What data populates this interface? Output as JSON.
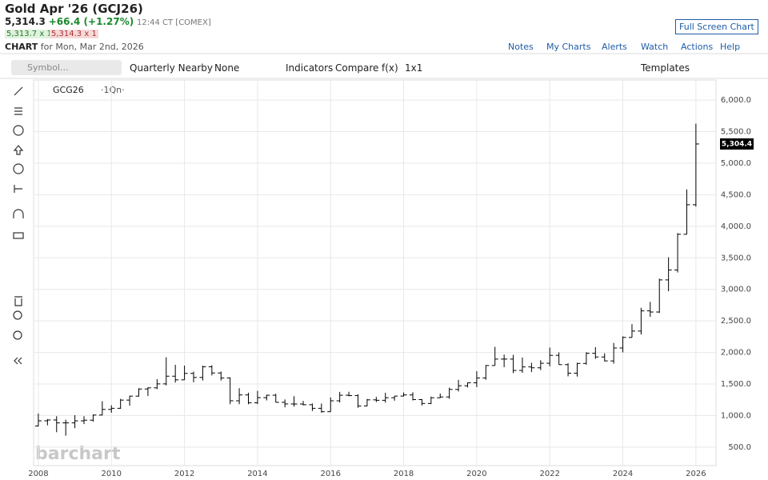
{
  "header": {
    "title": "Gold Apr '26 (GCJ26)",
    "last": "5,314.3",
    "change": "+66.4 (+1.27%)",
    "time": "12:44 CT [COMEX]",
    "bid": "5,313.7 x 1",
    "ask": "5,314.3 x 1",
    "chart_label": "CHART",
    "date": "for Mon, Mar 2nd, 2026",
    "full_screen": "Full Screen Chart"
  },
  "menu": [
    "Notes",
    "My Charts",
    "Alerts",
    "Watch",
    "Actions",
    "Help"
  ],
  "toolbar": {
    "search": "Symbol...",
    "items": [
      "Quarterly Nearby",
      "None",
      "Indicators",
      "Compare",
      "f(x)",
      "1x1"
    ],
    "templates": "Templates"
  },
  "watermark": "barchart",
  "chart_data": {
    "type": "ohlc",
    "symbol": "GCG26",
    "period": "·1Qn·",
    "color": "#000000",
    "grid": true,
    "x": [
      2008,
      2008.25,
      2008.5,
      2008.75,
      2009,
      2009.25,
      2009.5,
      2009.75,
      2010,
      2010.25,
      2010.5,
      2010.75,
      2011,
      2011.25,
      2011.5,
      2011.75,
      2012,
      2012.25,
      2012.5,
      2012.75,
      2013,
      2013.25,
      2013.5,
      2013.75,
      2014,
      2014.25,
      2014.5,
      2014.75,
      2015,
      2015.25,
      2015.5,
      2015.75,
      2016,
      2016.25,
      2016.5,
      2016.75,
      2017,
      2017.25,
      2017.5,
      2017.75,
      2018,
      2018.25,
      2018.5,
      2018.75,
      2019,
      2019.25,
      2019.5,
      2019.75,
      2020,
      2020.25,
      2020.5,
      2020.75,
      2021,
      2021.25,
      2021.5,
      2021.75,
      2022,
      2022.25,
      2022.5,
      2022.75,
      2023,
      2023.25,
      2023.5,
      2023.75,
      2024,
      2024.25,
      2024.5,
      2024.75,
      2025,
      2025.25,
      2025.5,
      2025.75,
      2026
    ],
    "open": [
      834,
      917,
      930,
      884,
      884,
      916,
      927,
      1008,
      1097,
      1115,
      1245,
      1308,
      1421,
      1439,
      1502,
      1624,
      1566,
      1668,
      1604,
      1773,
      1675,
      1596,
      1234,
      1327,
      1202,
      1284,
      1322,
      1210,
      1184,
      1183,
      1172,
      1115,
      1061,
      1234,
      1322,
      1317,
      1152,
      1249,
      1242,
      1283,
      1309,
      1327,
      1253,
      1192,
      1282,
      1295,
      1414,
      1472,
      1520,
      1596,
      1793,
      1895,
      1895,
      1715,
      1771,
      1757,
      1829,
      1954,
      1807,
      1672,
      1826,
      1986,
      1929,
      1866,
      2071,
      2238,
      2339,
      2659,
      2641,
      3150,
      3307,
      3873,
      4341
    ],
    "high": [
      1033,
      945,
      990,
      935,
      1007,
      990,
      1018,
      1227,
      1162,
      1265,
      1315,
      1432,
      1448,
      1577,
      1923,
      1804,
      1792,
      1696,
      1790,
      1798,
      1697,
      1605,
      1434,
      1362,
      1392,
      1331,
      1345,
      1255,
      1307,
      1232,
      1192,
      1191,
      1287,
      1375,
      1377,
      1337,
      1264,
      1296,
      1362,
      1310,
      1366,
      1369,
      1262,
      1300,
      1349,
      1442,
      1566,
      1525,
      1704,
      1800,
      2089,
      1966,
      1962,
      1919,
      1836,
      1877,
      2078,
      2001,
      1829,
      1836,
      2004,
      2085,
      1987,
      2152,
      2256,
      2449,
      2708,
      2801,
      3170,
      3509,
      3892,
      4584,
      5626
    ],
    "low": [
      830,
      845,
      736,
      681,
      800,
      865,
      904,
      1003,
      1045,
      1107,
      1157,
      1300,
      1309,
      1419,
      1478,
      1523,
      1564,
      1527,
      1555,
      1636,
      1555,
      1180,
      1180,
      1180,
      1182,
      1240,
      1208,
      1131,
      1142,
      1162,
      1072,
      1046,
      1061,
      1208,
      1306,
      1124,
      1146,
      1214,
      1205,
      1236,
      1303,
      1240,
      1160,
      1182,
      1276,
      1266,
      1382,
      1446,
      1451,
      1567,
      1792,
      1767,
      1673,
      1677,
      1690,
      1721,
      1780,
      1808,
      1622,
      1618,
      1807,
      1900,
      1859,
      1823,
      2001,
      2238,
      2285,
      2565,
      2625,
      2970,
      3268,
      3871,
      4312
    ],
    "close": [
      917,
      930,
      884,
      884,
      916,
      927,
      1008,
      1097,
      1115,
      1245,
      1308,
      1421,
      1439,
      1502,
      1624,
      1566,
      1668,
      1604,
      1773,
      1675,
      1596,
      1234,
      1327,
      1202,
      1284,
      1322,
      1210,
      1184,
      1183,
      1172,
      1115,
      1061,
      1234,
      1322,
      1317,
      1152,
      1249,
      1242,
      1283,
      1309,
      1327,
      1253,
      1192,
      1282,
      1295,
      1414,
      1472,
      1520,
      1596,
      1793,
      1895,
      1895,
      1715,
      1771,
      1757,
      1829,
      1954,
      1807,
      1672,
      1826,
      1986,
      1929,
      1866,
      2071,
      2238,
      2339,
      2659,
      2641,
      3150,
      3307,
      3873,
      4341,
      5304.4
    ],
    "last_price": {
      "value": 5304.4,
      "label": "5,304.4"
    },
    "xlim": [
      2007.87,
      2026.55
    ],
    "ylim": [
      207,
      6318
    ],
    "xticks": [
      2008,
      2010,
      2012,
      2014,
      2016,
      2018,
      2020,
      2022,
      2024,
      2026
    ],
    "yticks": [
      {
        "value": 500,
        "label": "500.0"
      },
      {
        "value": 1000,
        "label": "1,000.0"
      },
      {
        "value": 1500,
        "label": "1,500.0"
      },
      {
        "value": 2000,
        "label": "2,000.0"
      },
      {
        "value": 2500,
        "label": "2,500.0"
      },
      {
        "value": 3000,
        "label": "3,000.0"
      },
      {
        "value": 3500,
        "label": "3,500.0"
      },
      {
        "value": 4000,
        "label": "4,000.0"
      },
      {
        "value": 4500,
        "label": "4,500.0"
      },
      {
        "value": 5000,
        "label": "5,000.0"
      },
      {
        "value": 5500,
        "label": "5,500.0"
      },
      {
        "value": 6000,
        "label": "6,000.0"
      }
    ]
  }
}
